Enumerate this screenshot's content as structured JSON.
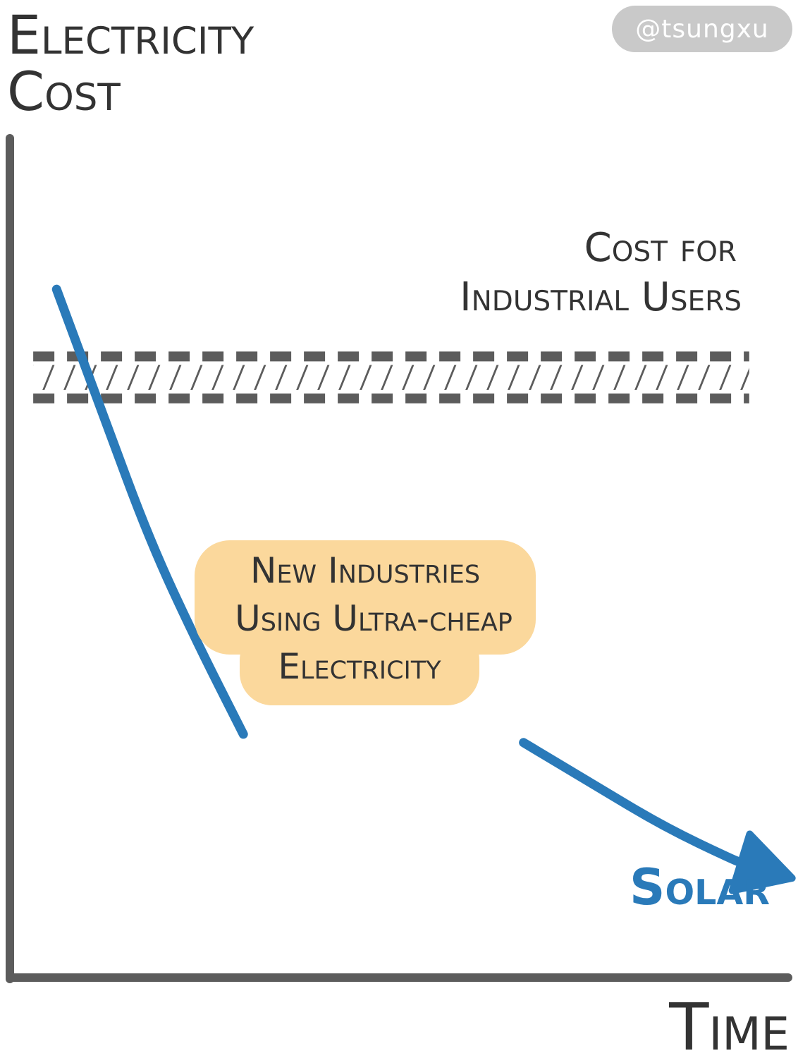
{
  "credit": "@tsungxu",
  "colors": {
    "axis": "#5c5c5c",
    "curve": "#2a7ab9",
    "band": "#5c5c5c",
    "callout_bg": "#fbd89c",
    "text": "#333333"
  },
  "chart_data": {
    "type": "line",
    "title": "",
    "xlabel": "Time",
    "ylabel_lines": [
      "Electricity",
      "Cost"
    ],
    "ylim": [
      0,
      100
    ],
    "xlim": [
      0,
      100
    ],
    "grid": false,
    "series": [
      {
        "name": "Solar",
        "x": [
          6,
          12,
          18,
          24,
          30,
          66,
          75,
          84,
          93,
          100
        ],
        "values": [
          82,
          67,
          52,
          40,
          29,
          28,
          23,
          18,
          14,
          12
        ]
      }
    ],
    "bands": [
      {
        "name_lines": [
          "Cost for",
          "Industrial Users"
        ],
        "y_low": 69,
        "y_high": 74,
        "x_range": [
          3,
          95
        ]
      }
    ],
    "annotations": [
      {
        "text_lines": [
          "New Industries",
          "Using Ultra-cheap",
          "Electricity"
        ],
        "x": 45,
        "y": 47
      }
    ]
  }
}
